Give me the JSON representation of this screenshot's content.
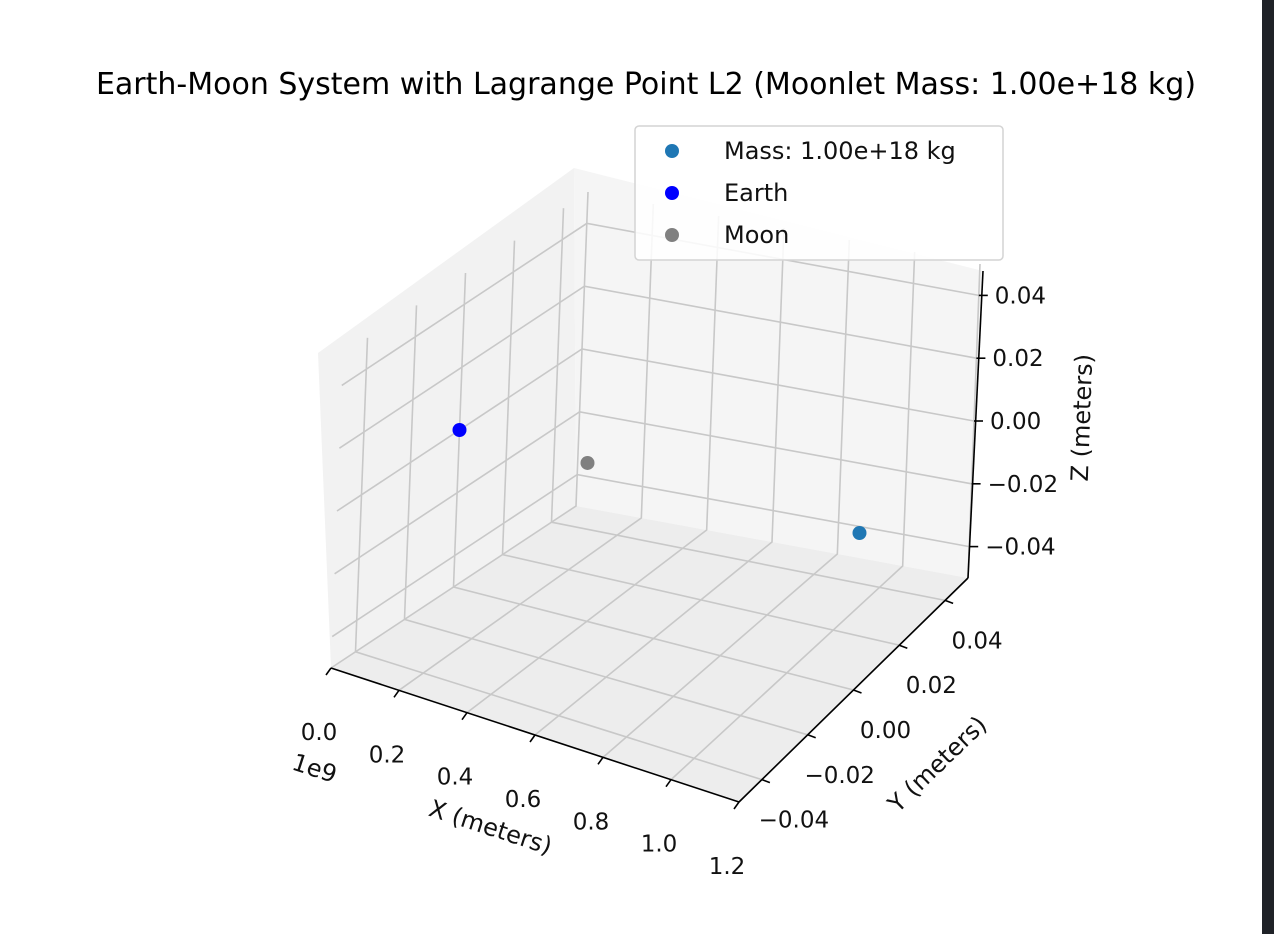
{
  "chart_data": {
    "type": "scatter",
    "projection": "3d",
    "title": "Earth-Moon System with Lagrange Point L2 (Moonlet Mass: 1.00e+18 kg)",
    "xlabel": "X (meters)",
    "ylabel": "Y (meters)",
    "zlabel": "Z (meters)",
    "x_offset_text": "1e9",
    "xlim": [
      0,
      1.2
    ],
    "ylim": [
      -0.05,
      0.05
    ],
    "zlim": [
      -0.05,
      0.05
    ],
    "x_ticks": [
      "0.0",
      "0.2",
      "0.4",
      "0.6",
      "0.8",
      "1.0",
      "1.2"
    ],
    "y_ticks": [
      "−0.04",
      "−0.02",
      "0.00",
      "0.02",
      "0.04"
    ],
    "z_ticks": [
      "−0.04",
      "−0.02",
      "0.00",
      "0.02",
      "0.04"
    ],
    "grid": true,
    "legend_position": "upper-right",
    "series": [
      {
        "name": "Mass: 1.00e+18 kg",
        "color": "#1f77b4",
        "points": [
          {
            "x": 1.2,
            "y": 0.0,
            "z": 0.0
          }
        ]
      },
      {
        "name": "Earth",
        "color": "#0000ff",
        "points": [
          {
            "x": 0.0,
            "y": 0.0,
            "z": 0.0
          }
        ]
      },
      {
        "name": "Moon",
        "color": "#808080",
        "points": [
          {
            "x": 0.384,
            "y": 0.0,
            "z": 0.0
          }
        ]
      }
    ]
  }
}
